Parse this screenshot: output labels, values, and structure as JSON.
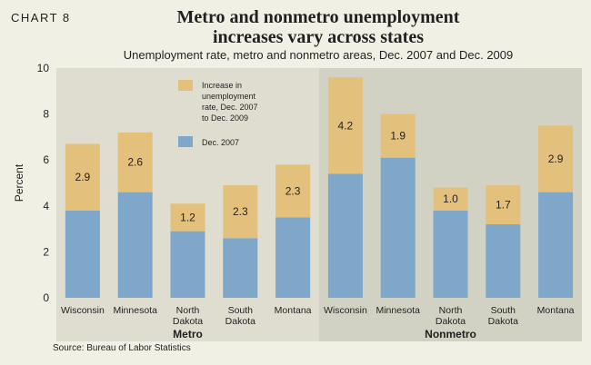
{
  "header": {
    "chart_number": "CHART 8",
    "title_line1": "Metro and nonmetro unemployment",
    "title_line2": "increases vary across states",
    "subtitle": "Unemployment rate, metro and nonmetro areas, Dec. 2007 and Dec. 2009"
  },
  "source": "Source: Bureau of Labor Statistics",
  "colors": {
    "base": "#7fa7c9",
    "increase": "#e3c17d",
    "metro_bg": "#deddcf",
    "nonmetro_bg": "#d1d2c3",
    "page_bg": "#f1f0e4"
  },
  "chart_data": {
    "type": "bar",
    "stacked": true,
    "ylabel": "Percent",
    "ylim": [
      0,
      10
    ],
    "yticks": [
      "0",
      "2",
      "4",
      "6",
      "8",
      "10"
    ],
    "categories": [
      {
        "line1": "Wisconsin",
        "line2": ""
      },
      {
        "line1": "Minnesota",
        "line2": ""
      },
      {
        "line1": "North",
        "line2": "Dakota"
      },
      {
        "line1": "South",
        "line2": "Dakota"
      },
      {
        "line1": "Montana",
        "line2": ""
      },
      {
        "line1": "Wisconsin",
        "line2": ""
      },
      {
        "line1": "Minnesota",
        "line2": ""
      },
      {
        "line1": "North",
        "line2": "Dakota"
      },
      {
        "line1": "South",
        "line2": "Dakota"
      },
      {
        "line1": "Montana",
        "line2": ""
      }
    ],
    "groups": [
      {
        "label": "Metro",
        "start": 0,
        "end": 4
      },
      {
        "label": "Nonmetro",
        "start": 5,
        "end": 9
      }
    ],
    "series": [
      {
        "name": "Dec. 2007",
        "values": [
          3.8,
          4.6,
          2.9,
          2.6,
          3.5,
          5.4,
          6.1,
          3.8,
          3.2,
          4.6
        ]
      },
      {
        "name": "Increase in unemployment rate, Dec. 2007 to Dec. 2009",
        "values": [
          2.9,
          2.6,
          1.2,
          2.3,
          2.3,
          4.2,
          1.9,
          1.0,
          1.7,
          2.9
        ],
        "labels": [
          "2.9",
          "2.6",
          "1.2",
          "2.3",
          "2.3",
          "4.2",
          "1.9",
          "1.0",
          "1.7",
          "2.9"
        ]
      }
    ],
    "legend": [
      {
        "lines": [
          "Increase in",
          "unemployment",
          "rate, Dec. 2007",
          "to Dec. 2009"
        ]
      },
      {
        "lines": [
          "Dec. 2007"
        ]
      }
    ],
    "legend_position": "top-left"
  }
}
